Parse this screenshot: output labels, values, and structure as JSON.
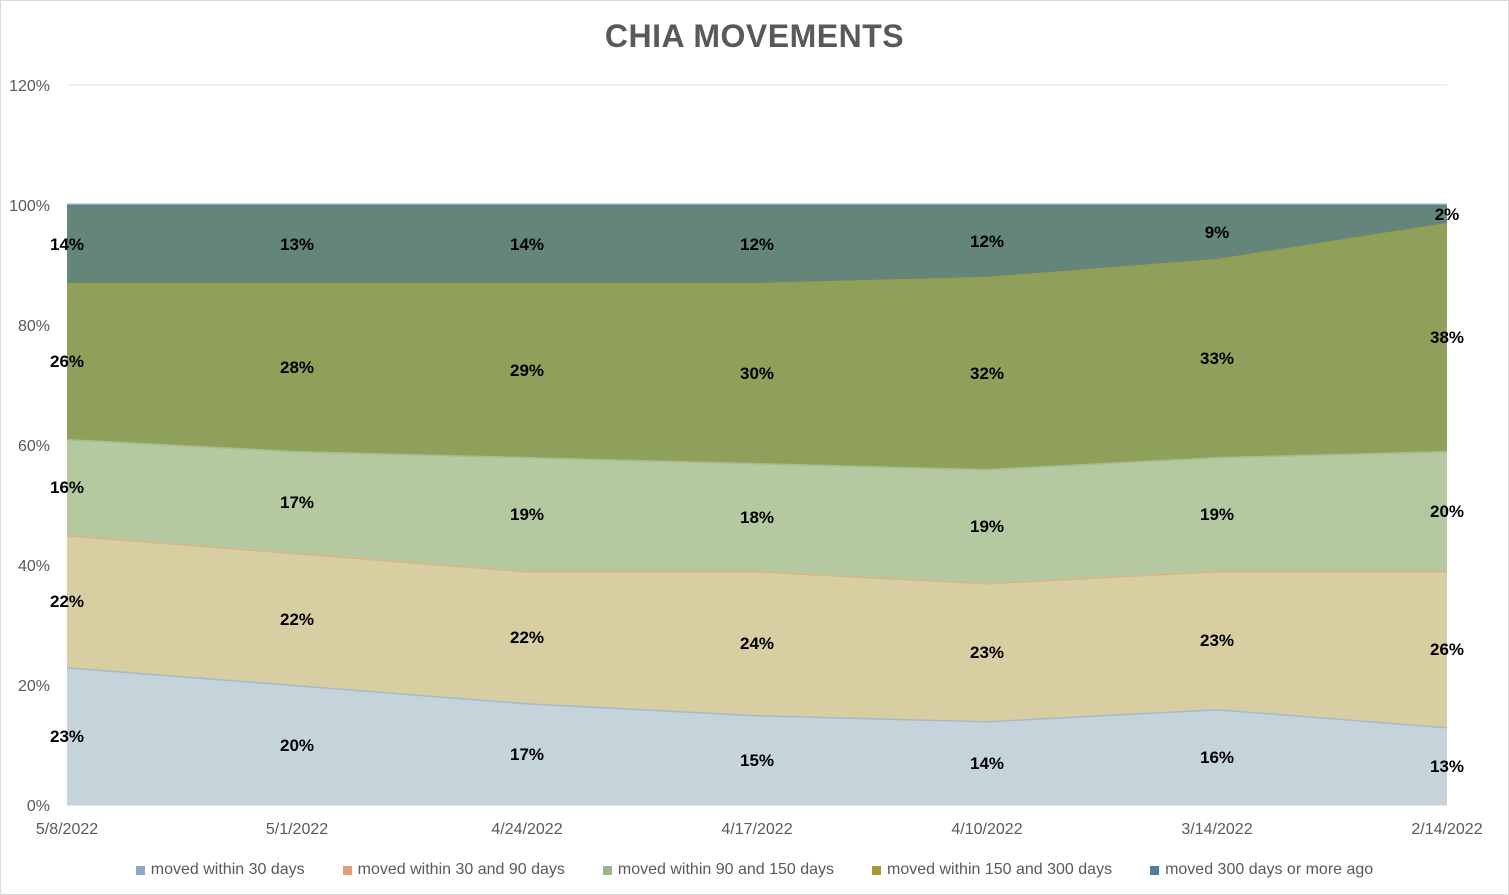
{
  "chart_data": {
    "type": "area",
    "stacked": "percent",
    "title": "CHIA MOVEMENTS",
    "xlabel": "",
    "ylabel": "",
    "categories": [
      "5/8/2022",
      "5/1/2022",
      "4/24/2022",
      "4/17/2022",
      "4/10/2022",
      "3/14/2022",
      "2/14/2022"
    ],
    "ylim": [
      0,
      120
    ],
    "yticks": [
      "0%",
      "20%",
      "40%",
      "60%",
      "80%",
      "100%",
      "120%"
    ],
    "grid": "horizontal",
    "legend_position": "bottom",
    "series": [
      {
        "name": "moved within 30 days",
        "color": "#8fa9c0",
        "fill": "#c5d3da",
        "values": [
          23,
          20,
          17,
          15,
          14,
          16,
          13
        ],
        "labels": [
          "23%",
          "20%",
          "17%",
          "15%",
          "14%",
          "16%",
          "13%"
        ]
      },
      {
        "name": "moved within 30 and 90 days",
        "color": "#e0a070",
        "fill": "#d7cea2",
        "values": [
          22,
          22,
          22,
          24,
          23,
          23,
          26
        ],
        "labels": [
          "22%",
          "22%",
          "22%",
          "24%",
          "23%",
          "23%",
          "26%"
        ]
      },
      {
        "name": "moved within 90 and 150 days",
        "color": "#9db38a",
        "fill": "#b5c9a1",
        "values": [
          16,
          17,
          19,
          18,
          19,
          19,
          20
        ],
        "labels": [
          "16%",
          "17%",
          "19%",
          "18%",
          "19%",
          "19%",
          "20%"
        ]
      },
      {
        "name": "moved within 150 and 300 days",
        "color": "#a69a32",
        "fill": "#8fa05a",
        "values": [
          26,
          28,
          29,
          30,
          32,
          33,
          38
        ],
        "labels": [
          "26%",
          "28%",
          "29%",
          "30%",
          "32%",
          "33%",
          "38%"
        ]
      },
      {
        "name": "moved 300 days or more ago",
        "color": "#4f7f92",
        "fill": "#63857a",
        "values": [
          14,
          13,
          14,
          12,
          12,
          9,
          2
        ],
        "labels": [
          "14%",
          "13%",
          "14%",
          "12%",
          "12%",
          "9%",
          "2%"
        ]
      }
    ]
  }
}
